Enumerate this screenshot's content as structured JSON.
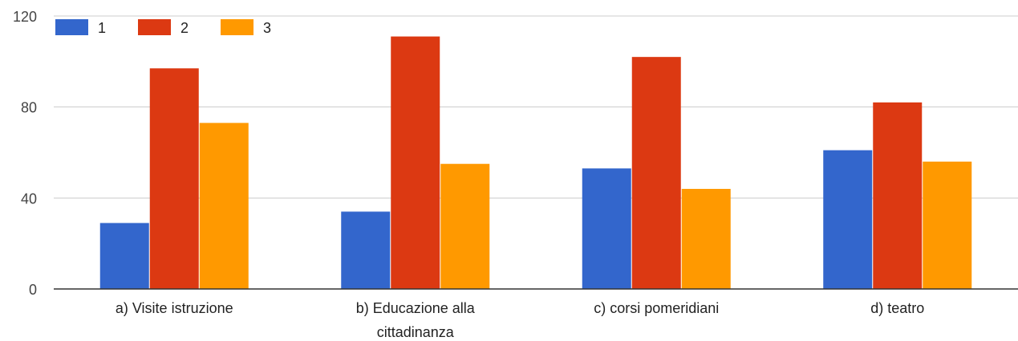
{
  "chart_data": {
    "type": "bar",
    "categories": [
      [
        "a) Visite istruzione"
      ],
      [
        "b) Educazione alla",
        "cittadinanza"
      ],
      [
        "c) corsi pomeridiani"
      ],
      [
        "d) teatro"
      ]
    ],
    "series": [
      {
        "name": "1",
        "color": "#3366cc",
        "values": [
          29,
          34,
          53,
          61
        ]
      },
      {
        "name": "2",
        "color": "#dc3912",
        "values": [
          97,
          111,
          102,
          82
        ]
      },
      {
        "name": "3",
        "color": "#ff9900",
        "values": [
          73,
          55,
          44,
          56
        ]
      }
    ],
    "y_ticks": [
      0,
      40,
      80,
      120
    ],
    "ylim": [
      0,
      120
    ],
    "grid": true,
    "legend_position": "top-left"
  }
}
